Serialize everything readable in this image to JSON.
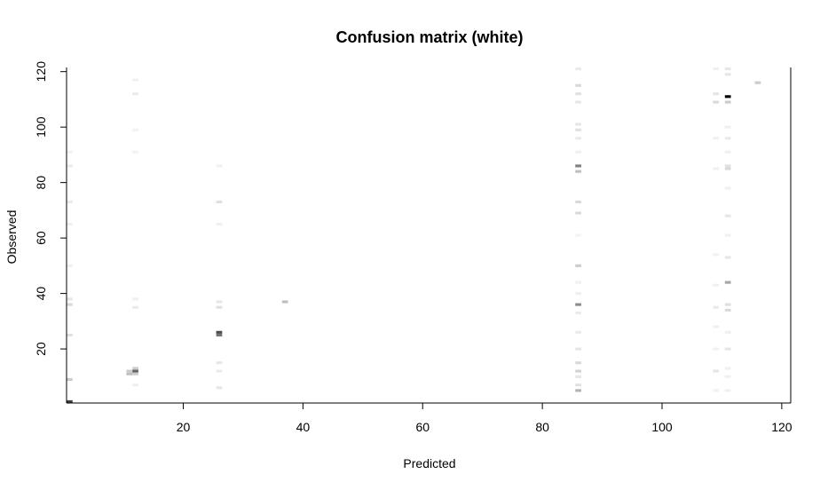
{
  "chart_data": {
    "type": "heatmap",
    "title": "Confusion matrix (white)",
    "xlabel": "Predicted",
    "ylabel": "Observed",
    "xlim": [
      0.5,
      121.5
    ],
    "ylim": [
      0.5,
      121.5
    ],
    "x_ticks": [
      20,
      40,
      60,
      80,
      100,
      120
    ],
    "y_ticks": [
      20,
      40,
      60,
      80,
      100,
      120
    ],
    "color_scale": "grey (white = 0, black = max)",
    "cells": [
      {
        "x": 1,
        "y": 1,
        "v": 0.75
      },
      {
        "x": 1,
        "y": 9,
        "v": 0.2
      },
      {
        "x": 1,
        "y": 25,
        "v": 0.12
      },
      {
        "x": 1,
        "y": 36,
        "v": 0.15
      },
      {
        "x": 1,
        "y": 38,
        "v": 0.1
      },
      {
        "x": 1,
        "y": 50,
        "v": 0.06
      },
      {
        "x": 1,
        "y": 65,
        "v": 0.06
      },
      {
        "x": 1,
        "y": 73,
        "v": 0.08
      },
      {
        "x": 1,
        "y": 86,
        "v": 0.08
      },
      {
        "x": 1,
        "y": 91,
        "v": 0.05
      },
      {
        "x": 11,
        "y": 11,
        "v": 0.25
      },
      {
        "x": 11,
        "y": 12,
        "v": 0.2
      },
      {
        "x": 12,
        "y": 11,
        "v": 0.2
      },
      {
        "x": 12,
        "y": 12,
        "v": 0.6
      },
      {
        "x": 12,
        "y": 13,
        "v": 0.2
      },
      {
        "x": 12,
        "y": 7,
        "v": 0.06
      },
      {
        "x": 12,
        "y": 35,
        "v": 0.08
      },
      {
        "x": 12,
        "y": 38,
        "v": 0.06
      },
      {
        "x": 12,
        "y": 91,
        "v": 0.05
      },
      {
        "x": 12,
        "y": 99,
        "v": 0.05
      },
      {
        "x": 12,
        "y": 112,
        "v": 0.08
      },
      {
        "x": 12,
        "y": 117,
        "v": 0.06
      },
      {
        "x": 26,
        "y": 6,
        "v": 0.1
      },
      {
        "x": 26,
        "y": 12,
        "v": 0.08
      },
      {
        "x": 26,
        "y": 15,
        "v": 0.1
      },
      {
        "x": 26,
        "y": 25,
        "v": 0.55
      },
      {
        "x": 26,
        "y": 26,
        "v": 0.7
      },
      {
        "x": 26,
        "y": 35,
        "v": 0.12
      },
      {
        "x": 26,
        "y": 37,
        "v": 0.1
      },
      {
        "x": 26,
        "y": 65,
        "v": 0.06
      },
      {
        "x": 26,
        "y": 73,
        "v": 0.12
      },
      {
        "x": 26,
        "y": 86,
        "v": 0.06
      },
      {
        "x": 37,
        "y": 37,
        "v": 0.25
      },
      {
        "x": 86,
        "y": 5,
        "v": 0.3
      },
      {
        "x": 86,
        "y": 7,
        "v": 0.12
      },
      {
        "x": 86,
        "y": 10,
        "v": 0.1
      },
      {
        "x": 86,
        "y": 12,
        "v": 0.18
      },
      {
        "x": 86,
        "y": 15,
        "v": 0.15
      },
      {
        "x": 86,
        "y": 20,
        "v": 0.1
      },
      {
        "x": 86,
        "y": 26,
        "v": 0.08
      },
      {
        "x": 86,
        "y": 33,
        "v": 0.08
      },
      {
        "x": 86,
        "y": 36,
        "v": 0.45
      },
      {
        "x": 86,
        "y": 40,
        "v": 0.06
      },
      {
        "x": 86,
        "y": 44,
        "v": 0.06
      },
      {
        "x": 86,
        "y": 50,
        "v": 0.2
      },
      {
        "x": 86,
        "y": 61,
        "v": 0.05
      },
      {
        "x": 86,
        "y": 69,
        "v": 0.15
      },
      {
        "x": 86,
        "y": 73,
        "v": 0.15
      },
      {
        "x": 86,
        "y": 84,
        "v": 0.25
      },
      {
        "x": 86,
        "y": 86,
        "v": 0.5
      },
      {
        "x": 86,
        "y": 91,
        "v": 0.06
      },
      {
        "x": 86,
        "y": 96,
        "v": 0.08
      },
      {
        "x": 86,
        "y": 99,
        "v": 0.12
      },
      {
        "x": 86,
        "y": 101,
        "v": 0.1
      },
      {
        "x": 86,
        "y": 109,
        "v": 0.1
      },
      {
        "x": 86,
        "y": 112,
        "v": 0.12
      },
      {
        "x": 86,
        "y": 115,
        "v": 0.15
      },
      {
        "x": 86,
        "y": 121,
        "v": 0.08
      },
      {
        "x": 109,
        "y": 5,
        "v": 0.05
      },
      {
        "x": 109,
        "y": 12,
        "v": 0.1
      },
      {
        "x": 109,
        "y": 20,
        "v": 0.05
      },
      {
        "x": 109,
        "y": 28,
        "v": 0.06
      },
      {
        "x": 109,
        "y": 35,
        "v": 0.08
      },
      {
        "x": 109,
        "y": 43,
        "v": 0.06
      },
      {
        "x": 109,
        "y": 54,
        "v": 0.05
      },
      {
        "x": 109,
        "y": 85,
        "v": 0.06
      },
      {
        "x": 109,
        "y": 96,
        "v": 0.06
      },
      {
        "x": 109,
        "y": 109,
        "v": 0.15
      },
      {
        "x": 109,
        "y": 112,
        "v": 0.1
      },
      {
        "x": 109,
        "y": 121,
        "v": 0.06
      },
      {
        "x": 111,
        "y": 5,
        "v": 0.06
      },
      {
        "x": 111,
        "y": 10,
        "v": 0.06
      },
      {
        "x": 111,
        "y": 13,
        "v": 0.06
      },
      {
        "x": 111,
        "y": 20,
        "v": 0.1
      },
      {
        "x": 111,
        "y": 26,
        "v": 0.06
      },
      {
        "x": 111,
        "y": 34,
        "v": 0.15
      },
      {
        "x": 111,
        "y": 36,
        "v": 0.12
      },
      {
        "x": 111,
        "y": 44,
        "v": 0.35
      },
      {
        "x": 111,
        "y": 53,
        "v": 0.1
      },
      {
        "x": 111,
        "y": 61,
        "v": 0.06
      },
      {
        "x": 111,
        "y": 68,
        "v": 0.1
      },
      {
        "x": 111,
        "y": 78,
        "v": 0.06
      },
      {
        "x": 111,
        "y": 85,
        "v": 0.15
      },
      {
        "x": 111,
        "y": 86,
        "v": 0.12
      },
      {
        "x": 111,
        "y": 91,
        "v": 0.06
      },
      {
        "x": 111,
        "y": 96,
        "v": 0.08
      },
      {
        "x": 111,
        "y": 100,
        "v": 0.06
      },
      {
        "x": 111,
        "y": 109,
        "v": 0.2
      },
      {
        "x": 111,
        "y": 111,
        "v": 1.0
      },
      {
        "x": 111,
        "y": 119,
        "v": 0.1
      },
      {
        "x": 111,
        "y": 121,
        "v": 0.1
      },
      {
        "x": 116,
        "y": 116,
        "v": 0.2
      }
    ]
  }
}
